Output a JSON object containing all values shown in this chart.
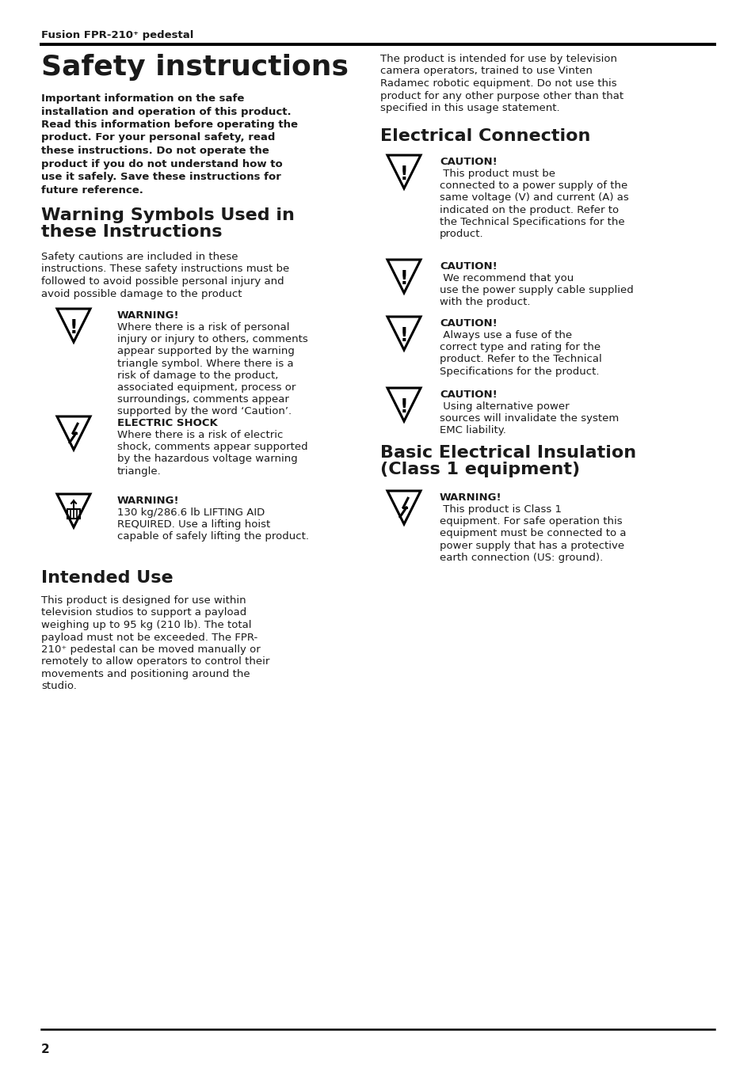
{
  "page_width": 9.54,
  "page_height": 13.54,
  "dpi": 100,
  "bg_color": "#ffffff",
  "text_color": "#1a1a1a",
  "header_text": "Fusion FPR-210⁺ pedestal",
  "footer_text": "2",
  "title_main": "Safety instructions",
  "bold_intro_lines": [
    "Important information on the safe",
    "installation and operation of this product.",
    "Read this information before operating the",
    "product. For your personal safety, read",
    "these instructions. Do not operate the",
    "product if you do not understand how to",
    "use it safely. Save these instructions for",
    "future reference."
  ],
  "section1_title_lines": [
    "Warning Symbols Used in",
    "these Instructions"
  ],
  "section1_body_lines": [
    "Safety cautions are included in these",
    "instructions. These safety instructions must be",
    "followed to avoid possible personal injury and",
    "avoid possible damage to the product"
  ],
  "warn1_title": "WARNING!",
  "warn1_body_lines": [
    "Where there is a risk of personal",
    "injury or injury to others, comments",
    "appear supported by the warning",
    "triangle symbol. Where there is a",
    "risk of damage to the product,",
    "associated equipment, process or",
    "surroundings, comments appear",
    "supported by the word ‘Caution’."
  ],
  "warn2_title": "ELECTRIC SHOCK",
  "warn2_body_lines": [
    "Where there is a risk of electric",
    "shock, comments appear supported",
    "by the hazardous voltage warning",
    "triangle."
  ],
  "warn3_title": "WARNING!",
  "warn3_body_lines": [
    "130 kg/286.6 lb LIFTING AID",
    "REQUIRED. Use a lifting hoist",
    "capable of safely lifting the product."
  ],
  "section2_title": "Intended Use",
  "section2_body_lines": [
    "This product is designed for use within",
    "television studios to support a payload",
    "weighing up to 95 kg (210 lb). The total",
    "payload must not be exceeded. The FPR-",
    "210⁺ pedestal can be moved manually or",
    "remotely to allow operators to control their",
    "movements and positioning around the",
    "studio."
  ],
  "right_intro_lines": [
    "The product is intended for use by television",
    "camera operators, trained to use Vinten",
    "Radamec robotic equipment. Do not use this",
    "product for any other purpose other than that",
    "specified in this usage statement."
  ],
  "section3_title": "Electrical Connection",
  "caution1_bold": "CAUTION!",
  "caution1_body_lines": [
    " This product must be",
    "connected to a power supply of the",
    "same voltage (V) and current (A) as",
    "indicated on the product. Refer to",
    "the Technical Specifications for the",
    "product."
  ],
  "caution2_bold": "CAUTION!",
  "caution2_body_lines": [
    " We recommend that you",
    "use the power supply cable supplied",
    "with the product."
  ],
  "caution3_bold": "CAUTION!",
  "caution3_body_lines": [
    " Always use a fuse of the",
    "correct type and rating for the",
    "product. Refer to the Technical",
    "Specifications for the product."
  ],
  "caution4_bold": "CAUTION!",
  "caution4_body_lines": [
    " Using alternative power",
    "sources will invalidate the system",
    "EMC liability."
  ],
  "section4_title_lines": [
    "Basic Electrical Insulation",
    "(Class 1 equipment)"
  ],
  "warn4_bold": "WARNING!",
  "warn4_body_lines": [
    " This product is Class 1",
    "equipment. For safe operation this",
    "equipment must be connected to a",
    "power supply that has a protective",
    "earth connection (US: ground)."
  ]
}
